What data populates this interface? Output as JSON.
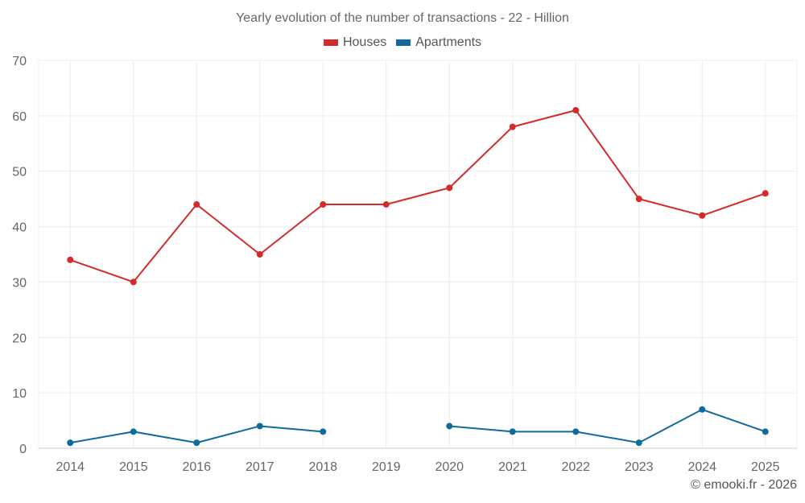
{
  "chart_data": {
    "type": "line",
    "title": "Yearly evolution of the number of transactions - 22 - Hillion",
    "categories": [
      "2014",
      "2015",
      "2016",
      "2017",
      "2018",
      "2019",
      "2020",
      "2021",
      "2022",
      "2023",
      "2024",
      "2025"
    ],
    "series": [
      {
        "name": "Houses",
        "color": "#d42a2a",
        "values": [
          34,
          30,
          44,
          35,
          44,
          44,
          47,
          58,
          61,
          45,
          42,
          46
        ]
      },
      {
        "name": "Apartments",
        "color": "#0e6b9c",
        "values": [
          1,
          3,
          1,
          4,
          3,
          null,
          4,
          3,
          3,
          1,
          7,
          3
        ]
      }
    ],
    "ylim": [
      0,
      70
    ],
    "yticks": [
      0,
      10,
      20,
      30,
      40,
      50,
      60,
      70
    ],
    "xlabel": "",
    "ylabel": "",
    "grid": true,
    "legend": "top-center"
  },
  "credit": "© emooki.fr - 2026"
}
